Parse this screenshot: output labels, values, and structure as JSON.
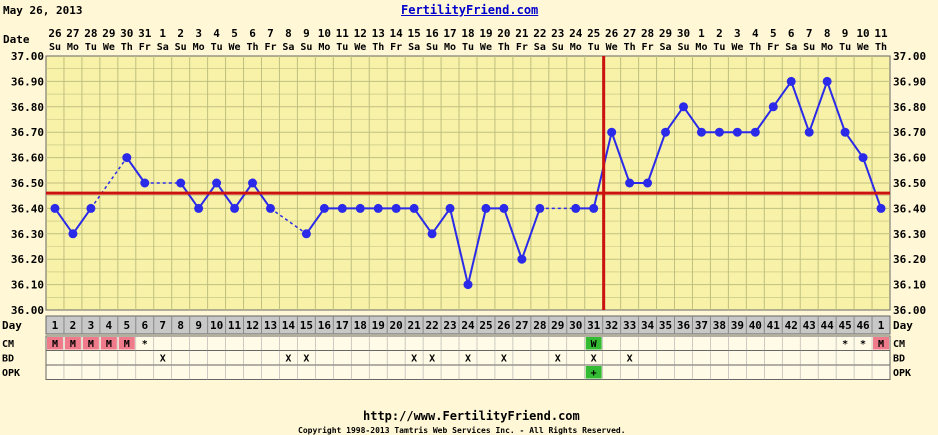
{
  "header": {
    "date": "May 26, 2013",
    "site": "FertilityFriend.com"
  },
  "footer": {
    "url": "http://www.FertilityFriend.com",
    "copyright": "Copyright 1998-2013 Tamtris Web Services Inc. - All Rights Reserved."
  },
  "colors": {
    "background": "#fff7d6",
    "plot_background": "#f8f2a8",
    "grid": "#bfbf80",
    "line": "#2a2ae8",
    "coverline": "#cc1111",
    "ovulation_line": "#cc1111",
    "menses_cell": "#ef7a8a",
    "positive_cell": "#33bb33",
    "day_row": "#c8c8c8"
  },
  "chart_data": {
    "type": "line",
    "title": "",
    "xlabel": "Date",
    "ylabel": "",
    "row_label_day": "Day",
    "dates": [
      "26",
      "27",
      "28",
      "29",
      "30",
      "31",
      "1",
      "2",
      "3",
      "4",
      "5",
      "6",
      "7",
      "8",
      "9",
      "10",
      "11",
      "12",
      "13",
      "14",
      "15",
      "16",
      "17",
      "18",
      "19",
      "20",
      "21",
      "22",
      "23",
      "24",
      "25",
      "26",
      "27",
      "28",
      "29",
      "30",
      "1",
      "2",
      "3",
      "4",
      "5",
      "6",
      "7",
      "8",
      "9",
      "10",
      "11"
    ],
    "weekdays": [
      "Su",
      "Mo",
      "Tu",
      "We",
      "Th",
      "Fr",
      "Sa",
      "Su",
      "Mo",
      "Tu",
      "We",
      "Th",
      "Fr",
      "Sa",
      "Su",
      "Mo",
      "Tu",
      "We",
      "Th",
      "Fr",
      "Sa",
      "Su",
      "Mo",
      "Tu",
      "We",
      "Th",
      "Fr",
      "Sa",
      "Su",
      "Mo",
      "Tu",
      "We",
      "Th",
      "Fr",
      "Sa",
      "Su",
      "Mo",
      "Tu",
      "We",
      "Th",
      "Fr",
      "Sa",
      "Su",
      "Mo",
      "Tu",
      "We",
      "Th"
    ],
    "cycle_days": [
      "1",
      "2",
      "3",
      "4",
      "5",
      "6",
      "7",
      "8",
      "9",
      "10",
      "11",
      "12",
      "13",
      "14",
      "15",
      "16",
      "17",
      "18",
      "19",
      "20",
      "21",
      "22",
      "23",
      "24",
      "25",
      "26",
      "27",
      "28",
      "29",
      "30",
      "31",
      "32",
      "33",
      "34",
      "35",
      "36",
      "37",
      "38",
      "39",
      "40",
      "41",
      "42",
      "43",
      "44",
      "45",
      "46",
      "1"
    ],
    "temperatures": [
      36.4,
      36.3,
      36.4,
      null,
      36.6,
      36.5,
      null,
      36.5,
      36.4,
      36.5,
      36.4,
      36.5,
      36.4,
      null,
      36.3,
      36.4,
      36.4,
      36.4,
      36.4,
      36.4,
      36.4,
      36.3,
      36.4,
      36.1,
      36.4,
      36.4,
      36.2,
      36.4,
      null,
      36.4,
      36.4,
      36.7,
      36.5,
      36.5,
      36.7,
      36.8,
      36.7,
      36.7,
      36.7,
      36.7,
      36.8,
      36.9,
      36.7,
      36.9,
      36.7,
      36.6,
      36.4
    ],
    "dashed_gaps": [
      [
        2,
        4
      ],
      [
        5,
        7
      ],
      [
        12,
        14
      ],
      [
        27,
        29
      ]
    ],
    "ylim": [
      36.0,
      37.0
    ],
    "ytick_labels": [
      "37.00",
      "36.90",
      "36.80",
      "36.70",
      "36.60",
      "36.50",
      "36.40",
      "36.30",
      "36.20",
      "36.10",
      "36.00"
    ],
    "coverline": 36.46,
    "ovulation_index": 30,
    "grid": true,
    "rows": [
      {
        "label": "CM",
        "cells": {
          "0": "M",
          "1": "M",
          "2": "M",
          "3": "M",
          "4": "M",
          "5": "*",
          "30": "W",
          "44": "*",
          "45": "*",
          "46": "M"
        }
      },
      {
        "label": "BD",
        "cells": {
          "6": "X",
          "13": "X",
          "14": "X",
          "20": "X",
          "21": "X",
          "23": "X",
          "25": "X",
          "28": "X",
          "30": "X",
          "32": "X"
        }
      },
      {
        "label": "OPK",
        "cells": {
          "30": "+"
        }
      }
    ]
  }
}
